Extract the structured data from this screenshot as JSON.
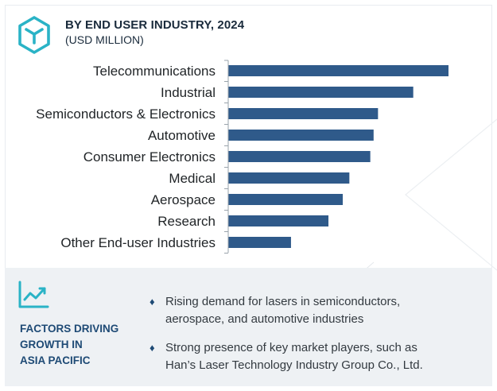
{
  "header": {
    "title": "BY END USER INDUSTRY, 2024",
    "subtitle": "(USD MILLION)",
    "icon": "cube-logo-icon"
  },
  "colors": {
    "bar": "#2f5a8a",
    "axis": "#9aa3ab",
    "accent": "#1e4a75",
    "icon": "#2ab3c6",
    "panel": "#eef1f4"
  },
  "chart_data": {
    "type": "bar",
    "orientation": "horizontal",
    "categories": [
      "Telecommunications",
      "Industrial",
      "Semiconductors & Electronics",
      "Automotive",
      "Consumer Electronics",
      "Medical",
      "Aerospace",
      "Research",
      "Other End-user Industries"
    ],
    "values": [
      100,
      84,
      68,
      66,
      64.5,
      55,
      52,
      45.5,
      28.5
    ],
    "xlim": [
      0,
      100
    ],
    "grid": false,
    "value_labels": false
  },
  "factors": {
    "icon": "trend-chart-icon",
    "title_lines": [
      "FACTORS DRIVING",
      "GROWTH IN",
      "ASIA PACIFIC"
    ],
    "bullets": [
      {
        "lines": [
          "Rising demand for lasers in semiconductors,",
          "aerospace, and automotive industries"
        ]
      },
      {
        "lines": [
          "Strong presence of key market players, such as",
          "Han’s Laser Technology Industry Group Co., Ltd."
        ]
      }
    ],
    "bullet_symbol": "♦"
  }
}
